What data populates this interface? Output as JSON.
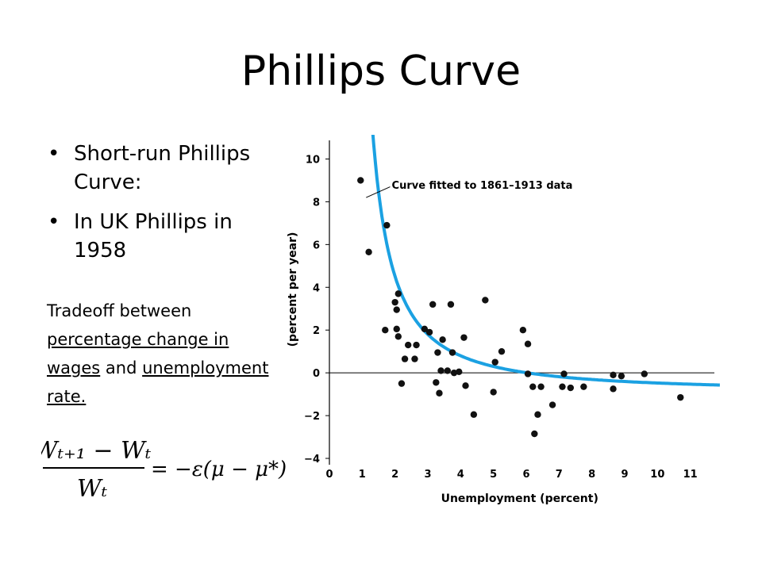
{
  "slide": {
    "title": "Phillips Curve",
    "bullets": [
      "Short-run Phillips Curve:",
      "In UK Phillips in 1958"
    ],
    "note": {
      "text1": "Tradeoff between ",
      "link1": "percentage change in wages",
      "text2": " and ",
      "link2": "unemployment rate."
    },
    "formula": {
      "lhs_num": "Wₜ₊₁ − Wₜ",
      "lhs_den": "Wₜ",
      "rhs": "= −ε(μ − μ*)"
    }
  },
  "chart_data": {
    "type": "scatter",
    "xlabel": "Unemployment (percent)",
    "ylabel": "(percent per year)",
    "xlim": [
      0,
      12
    ],
    "ylim": [
      -4,
      10.5
    ],
    "xticks": [
      0,
      1,
      2,
      3,
      4,
      5,
      6,
      7,
      8,
      9,
      10,
      11
    ],
    "yticks": [
      -4,
      -2,
      0,
      2,
      4,
      6,
      8,
      10
    ],
    "ytick_labels": [
      "−4",
      "−2",
      "0",
      "2",
      "4",
      "6",
      "8",
      "10"
    ],
    "annotation": "Curve fitted to 1861–1913 data",
    "curve_color": "#1ba1e2",
    "points": [
      {
        "x": 0.95,
        "y": 9.0
      },
      {
        "x": 1.2,
        "y": 5.65
      },
      {
        "x": 1.75,
        "y": 6.9
      },
      {
        "x": 1.7,
        "y": 2.0
      },
      {
        "x": 2.0,
        "y": 3.3
      },
      {
        "x": 2.1,
        "y": 3.7
      },
      {
        "x": 2.05,
        "y": 2.95
      },
      {
        "x": 2.05,
        "y": 2.05
      },
      {
        "x": 2.1,
        "y": 1.7
      },
      {
        "x": 2.2,
        "y": -0.5
      },
      {
        "x": 2.3,
        "y": 0.65
      },
      {
        "x": 2.4,
        "y": 1.3
      },
      {
        "x": 2.6,
        "y": 0.65
      },
      {
        "x": 2.65,
        "y": 1.3
      },
      {
        "x": 2.9,
        "y": 2.05
      },
      {
        "x": 3.05,
        "y": 1.9
      },
      {
        "x": 3.15,
        "y": 3.2
      },
      {
        "x": 3.25,
        "y": -0.45
      },
      {
        "x": 3.3,
        "y": 0.95
      },
      {
        "x": 3.35,
        "y": -0.95
      },
      {
        "x": 3.4,
        "y": 0.1
      },
      {
        "x": 3.45,
        "y": 1.55
      },
      {
        "x": 3.6,
        "y": 0.1
      },
      {
        "x": 3.7,
        "y": 3.2
      },
      {
        "x": 3.75,
        "y": 0.95
      },
      {
        "x": 3.8,
        "y": 0.0
      },
      {
        "x": 3.95,
        "y": 0.05
      },
      {
        "x": 4.1,
        "y": 1.65
      },
      {
        "x": 4.15,
        "y": -0.6
      },
      {
        "x": 4.4,
        "y": -1.95
      },
      {
        "x": 4.75,
        "y": 3.4
      },
      {
        "x": 5.0,
        "y": -0.9
      },
      {
        "x": 5.05,
        "y": 0.5
      },
      {
        "x": 5.25,
        "y": 1.0
      },
      {
        "x": 5.9,
        "y": 2.0
      },
      {
        "x": 6.05,
        "y": 1.35
      },
      {
        "x": 6.05,
        "y": -0.05
      },
      {
        "x": 6.2,
        "y": -0.65
      },
      {
        "x": 6.25,
        "y": -2.85
      },
      {
        "x": 6.35,
        "y": -1.95
      },
      {
        "x": 6.45,
        "y": -0.65
      },
      {
        "x": 6.8,
        "y": -1.5
      },
      {
        "x": 7.1,
        "y": -0.65
      },
      {
        "x": 7.15,
        "y": -0.05
      },
      {
        "x": 7.35,
        "y": -0.7
      },
      {
        "x": 7.75,
        "y": -0.65
      },
      {
        "x": 8.65,
        "y": -0.75
      },
      {
        "x": 8.65,
        "y": -0.1
      },
      {
        "x": 8.9,
        "y": -0.15
      },
      {
        "x": 9.6,
        "y": -0.05
      },
      {
        "x": 10.7,
        "y": -1.15
      }
    ]
  }
}
